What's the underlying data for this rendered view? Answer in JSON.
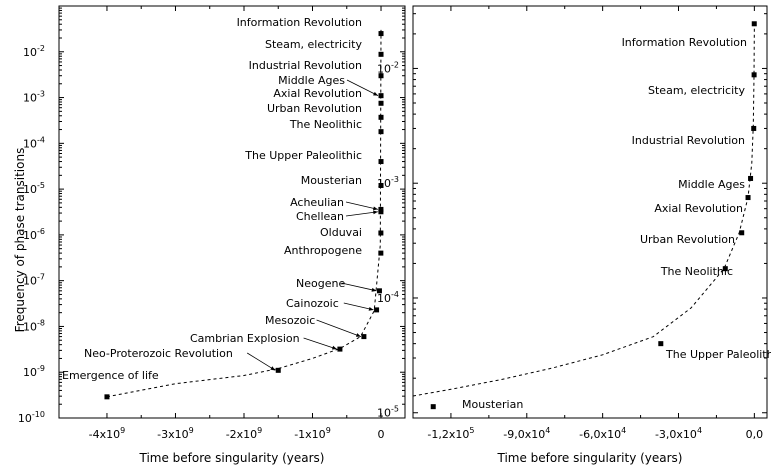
{
  "shared_ylabel": "Frequency of phase transitions",
  "chart_data": [
    {
      "type": "scatter",
      "panel": "left",
      "xlabel": "Time before singularity (years)",
      "ylabel": "Frequency of phase transitions",
      "y_scale": "log",
      "xlim": [
        -4700000000,
        350000000
      ],
      "ylim": [
        1e-10,
        0.1
      ],
      "x_ticks": [
        {
          "value": -4000000000,
          "mant": "-4x10",
          "exp": "9"
        },
        {
          "value": -3000000000,
          "mant": "-3x10",
          "exp": "9"
        },
        {
          "value": -2000000000,
          "mant": "-2x10",
          "exp": "9"
        },
        {
          "value": -1000000000,
          "mant": "-1x10",
          "exp": "9"
        },
        {
          "value": 0,
          "mant": "0",
          "exp": ""
        }
      ],
      "y_ticks": [
        {
          "value": 1e-10,
          "mant": "10",
          "exp": "-10"
        },
        {
          "value": 1e-09,
          "mant": "10",
          "exp": "-9"
        },
        {
          "value": 1e-08,
          "mant": "10",
          "exp": "-8"
        },
        {
          "value": 1e-07,
          "mant": "10",
          "exp": "-7"
        },
        {
          "value": 1e-06,
          "mant": "10",
          "exp": "-6"
        },
        {
          "value": 1e-05,
          "mant": "10",
          "exp": "-5"
        },
        {
          "value": 0.0001,
          "mant": "10",
          "exp": "-4"
        },
        {
          "value": 0.001,
          "mant": "10",
          "exp": "-3"
        },
        {
          "value": 0.01,
          "mant": "10",
          "exp": "-2"
        }
      ],
      "trend_line": {
        "style": "dashed",
        "x": [
          -4000000000,
          -3000000000,
          -2000000000,
          -1500000000,
          -1000000000,
          -600000000,
          -300000000,
          -100000000,
          -10000000,
          0
        ],
        "y": [
          2.9e-10,
          5.6e-10,
          8.5e-10,
          1.2e-09,
          2e-09,
          3.3e-09,
          6e-09,
          2.2e-08,
          6e-07,
          0.03
        ]
      },
      "points": [
        {
          "label": "Emergence of life",
          "x": -4000000000,
          "y": 2.9e-10
        },
        {
          "label": "Neo-Proterozoic Revolution",
          "x": -1500000000,
          "y": 1.1e-09
        },
        {
          "label": "Cambrian Explosion",
          "x": -600000000,
          "y": 3.2e-09
        },
        {
          "label": "Mesozoic",
          "x": -250000000,
          "y": 6e-09
        },
        {
          "label": "Cainozoic",
          "x": -65000000,
          "y": 2.3e-08
        },
        {
          "label": "Neogene",
          "x": -23000000,
          "y": 6e-08
        },
        {
          "label": "Anthropogene",
          "x": -2500000,
          "y": 4e-07
        },
        {
          "label": "Olduvai",
          "x": -2000000,
          "y": 1.1e-06
        },
        {
          "label": "Chellean",
          "x": -1500000,
          "y": 3.2e-06
        },
        {
          "label": "Acheulian",
          "x": -1400000,
          "y": 3.6e-06
        },
        {
          "label": "Mousterian",
          "x": -130000,
          "y": 1.2e-05
        },
        {
          "label": "The Upper Paleolithic",
          "x": -40000,
          "y": 4e-05
        },
        {
          "label": "The Neolithic",
          "x": -11000,
          "y": 0.00018
        },
        {
          "label": "Urban Revolution",
          "x": -5000,
          "y": 0.00037
        },
        {
          "label": "Axial Revolution",
          "x": -2500,
          "y": 0.00075
        },
        {
          "label": "Middle Ages",
          "x": -1500,
          "y": 0.0011
        },
        {
          "label": "Industrial Revolution",
          "x": -250,
          "y": 0.003
        },
        {
          "label": "Steam, electricity",
          "x": -120,
          "y": 0.0088
        },
        {
          "label": "Information Revolution",
          "x": -40,
          "y": 0.025
        }
      ]
    },
    {
      "type": "scatter",
      "panel": "right",
      "xlabel": "Time before singularity (years)",
      "y_scale": "log",
      "xlim": [
        -135000,
        5000
      ],
      "ylim": [
        9e-06,
        0.035
      ],
      "x_ticks": [
        {
          "value": -120000,
          "mant": "-1,2x10",
          "exp": "5"
        },
        {
          "value": -90000,
          "mant": "-9,0x10",
          "exp": "4"
        },
        {
          "value": -60000,
          "mant": "-6,0x10",
          "exp": "4"
        },
        {
          "value": -30000,
          "mant": "-3,0x10",
          "exp": "4"
        },
        {
          "value": 0,
          "mant": "0,0",
          "exp": ""
        }
      ],
      "y_ticks": [
        {
          "value": 1e-05,
          "mant": "10",
          "exp": "-5"
        },
        {
          "value": 0.0001,
          "mant": "10",
          "exp": "-4"
        },
        {
          "value": 0.001,
          "mant": "10",
          "exp": "-3"
        },
        {
          "value": 0.01,
          "mant": "10",
          "exp": "-2"
        }
      ],
      "trend_line": {
        "style": "dashed",
        "x": [
          -135000,
          -120000,
          -100000,
          -80000,
          -60000,
          -40000,
          -25000,
          -12000,
          -6000,
          -2500,
          -1000,
          -400,
          -150,
          0
        ],
        "y": [
          1.4e-05,
          1.6e-05,
          1.95e-05,
          2.45e-05,
          3.2e-05,
          4.6e-05,
          8.2e-05,
          0.00018,
          0.00037,
          0.00075,
          0.0015,
          0.0032,
          0.0085,
          0.026
        ]
      },
      "points": [
        {
          "label": "Mousterian",
          "x": -127000,
          "y": 1.13e-05
        },
        {
          "label": "The Upper Paleolithic",
          "x": -37000,
          "y": 4e-05
        },
        {
          "label": "The Neolithic",
          "x": -11500,
          "y": 0.00018
        },
        {
          "label": "Urban Revolution",
          "x": -5000,
          "y": 0.00037
        },
        {
          "label": "Axial Revolution",
          "x": -2500,
          "y": 0.00075
        },
        {
          "label": "Middle Ages",
          "x": -1500,
          "y": 0.0011
        },
        {
          "label": "Industrial Revolution",
          "x": -250,
          "y": 0.003
        },
        {
          "label": "Steam, electricity",
          "x": -100,
          "y": 0.0088
        },
        {
          "label": "Information Revolution",
          "x": -40,
          "y": 0.0245
        }
      ]
    }
  ]
}
